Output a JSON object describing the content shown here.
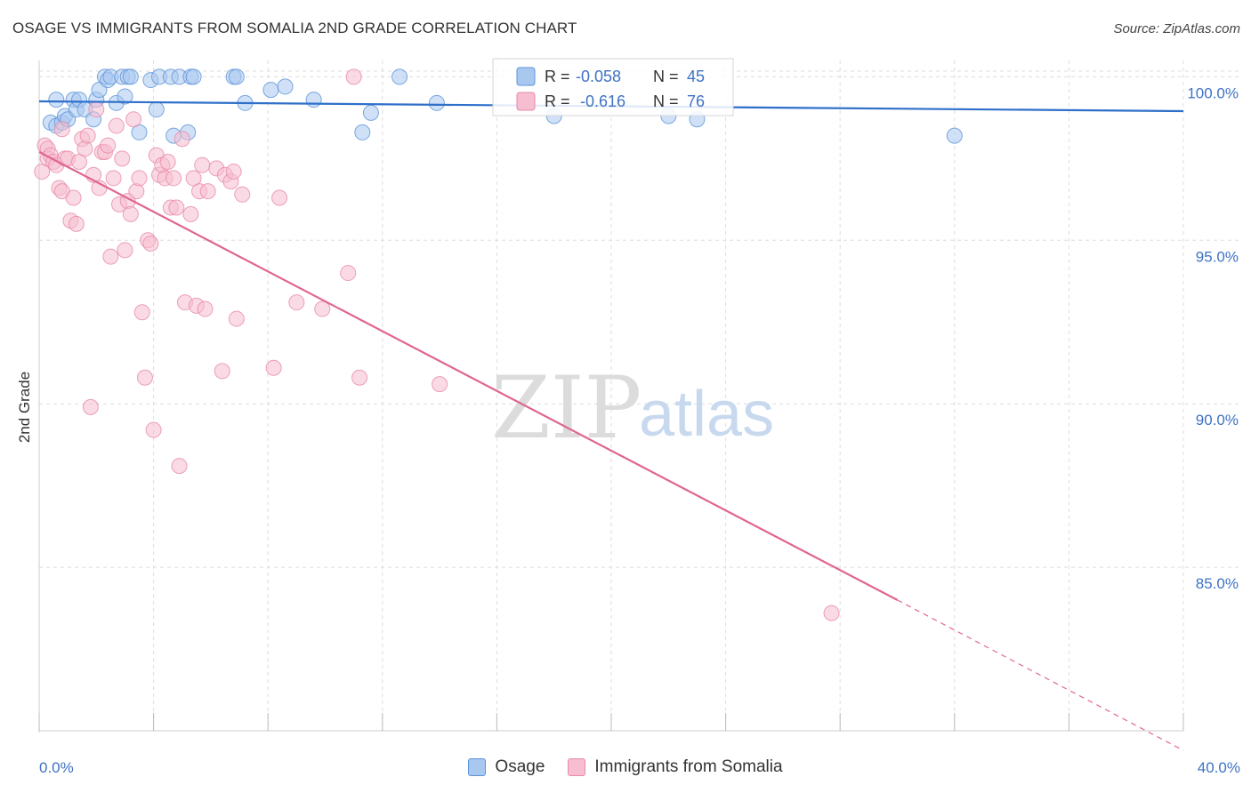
{
  "title": "OSAGE VS IMMIGRANTS FROM SOMALIA 2ND GRADE CORRELATION CHART",
  "source": "Source: ZipAtlas.com",
  "watermark": {
    "zip": "ZIP",
    "atlas": "atlas"
  },
  "colors": {
    "osage_fill": "#a9c8f0",
    "osage_stroke": "#5b93d8",
    "osage_line": "#2e6fc9",
    "somalia_fill": "#f6bed0",
    "somalia_stroke": "#e889a8",
    "somalia_line": "#e06690",
    "tick_text": "#3f72c4",
    "grid": "#dddddd"
  },
  "legend_top": {
    "rows": [
      {
        "r_label": "R =",
        "r_value": "-0.058",
        "n_label": "N =",
        "n_value": "45"
      },
      {
        "r_label": "R =",
        "r_value": "-0.616",
        "n_label": "N =",
        "n_value": "76"
      }
    ]
  },
  "legend_bottom": {
    "osage": "Osage",
    "somalia": "Immigrants from Somalia"
  },
  "chart_data": {
    "type": "scatter",
    "title": "OSAGE VS IMMIGRANTS FROM SOMALIA 2ND GRADE CORRELATION CHART",
    "xlabel": "",
    "ylabel": "2nd Grade",
    "xlim": [
      0.0,
      40.0
    ],
    "ylim": [
      80.0,
      100.5
    ],
    "x_tick_labels": [
      "0.0%",
      "40.0%"
    ],
    "y_ticks": [
      100.0,
      95.0,
      90.0,
      85.0
    ],
    "y_tick_labels": [
      "100.0%",
      "95.0%",
      "90.0%",
      "85.0%"
    ],
    "grid": true,
    "legend_position": "top-center",
    "series": [
      {
        "name": "Osage",
        "r": -0.058,
        "n": 45,
        "trend": {
          "x": [
            0.0,
            40.0
          ],
          "y": [
            99.25,
            98.95
          ]
        },
        "points": [
          [
            0.4,
            98.6
          ],
          [
            0.6,
            98.5
          ],
          [
            0.6,
            99.3
          ],
          [
            0.8,
            98.6
          ],
          [
            0.9,
            98.8
          ],
          [
            1.0,
            98.7
          ],
          [
            1.2,
            99.3
          ],
          [
            1.3,
            99.0
          ],
          [
            1.4,
            99.3
          ],
          [
            1.6,
            99.0
          ],
          [
            1.9,
            98.7
          ],
          [
            2.0,
            99.3
          ],
          [
            2.1,
            99.6
          ],
          [
            2.3,
            100.0
          ],
          [
            2.4,
            99.9
          ],
          [
            2.5,
            100.0
          ],
          [
            2.7,
            99.2
          ],
          [
            2.9,
            100.0
          ],
          [
            3.0,
            99.4
          ],
          [
            3.1,
            100.0
          ],
          [
            3.2,
            100.0
          ],
          [
            3.5,
            98.3
          ],
          [
            3.9,
            99.9
          ],
          [
            4.1,
            99.0
          ],
          [
            4.2,
            100.0
          ],
          [
            4.6,
            100.0
          ],
          [
            4.7,
            98.2
          ],
          [
            4.9,
            100.0
          ],
          [
            5.2,
            98.3
          ],
          [
            5.3,
            100.0
          ],
          [
            5.4,
            100.0
          ],
          [
            6.8,
            100.0
          ],
          [
            6.9,
            100.0
          ],
          [
            7.2,
            99.2
          ],
          [
            8.1,
            99.6
          ],
          [
            8.6,
            99.7
          ],
          [
            9.6,
            99.3
          ],
          [
            11.3,
            98.3
          ],
          [
            11.6,
            98.9
          ],
          [
            12.6,
            100.0
          ],
          [
            13.9,
            99.2
          ],
          [
            18.0,
            98.8
          ],
          [
            22.0,
            98.8
          ],
          [
            23.0,
            98.7
          ],
          [
            32.0,
            98.2
          ]
        ]
      },
      {
        "name": "Immigrants from Somalia",
        "r": -0.616,
        "n": 76,
        "trend": {
          "x": [
            0.0,
            30.0
          ],
          "y": [
            97.7,
            84.0
          ]
        },
        "trend_extension": {
          "x": [
            30.0,
            40.0
          ],
          "y": [
            84.0,
            79.4
          ]
        },
        "points": [
          [
            0.1,
            97.1
          ],
          [
            0.2,
            97.9
          ],
          [
            0.3,
            97.8
          ],
          [
            0.3,
            97.5
          ],
          [
            0.4,
            97.6
          ],
          [
            0.5,
            97.4
          ],
          [
            0.6,
            97.3
          ],
          [
            0.7,
            96.6
          ],
          [
            0.8,
            96.5
          ],
          [
            0.8,
            98.4
          ],
          [
            0.9,
            97.5
          ],
          [
            1.0,
            97.5
          ],
          [
            1.1,
            95.6
          ],
          [
            1.2,
            96.3
          ],
          [
            1.3,
            95.5
          ],
          [
            1.4,
            97.4
          ],
          [
            1.5,
            98.1
          ],
          [
            1.6,
            97.8
          ],
          [
            1.7,
            98.2
          ],
          [
            1.8,
            89.9
          ],
          [
            1.9,
            97.0
          ],
          [
            2.0,
            99.0
          ],
          [
            2.1,
            96.6
          ],
          [
            2.2,
            97.7
          ],
          [
            2.3,
            97.7
          ],
          [
            2.4,
            97.9
          ],
          [
            2.5,
            94.5
          ],
          [
            2.6,
            96.9
          ],
          [
            2.7,
            98.5
          ],
          [
            2.8,
            96.1
          ],
          [
            2.9,
            97.5
          ],
          [
            3.0,
            94.7
          ],
          [
            3.1,
            96.2
          ],
          [
            3.2,
            95.8
          ],
          [
            3.3,
            98.7
          ],
          [
            3.4,
            96.5
          ],
          [
            3.5,
            96.9
          ],
          [
            3.6,
            92.8
          ],
          [
            3.7,
            90.8
          ],
          [
            3.8,
            95.0
          ],
          [
            3.9,
            94.9
          ],
          [
            4.0,
            89.2
          ],
          [
            4.1,
            97.6
          ],
          [
            4.2,
            97.0
          ],
          [
            4.3,
            97.3
          ],
          [
            4.4,
            96.9
          ],
          [
            4.5,
            97.4
          ],
          [
            4.6,
            96.0
          ],
          [
            4.7,
            96.9
          ],
          [
            4.8,
            96.0
          ],
          [
            4.9,
            88.1
          ],
          [
            5.0,
            98.1
          ],
          [
            5.1,
            93.1
          ],
          [
            5.3,
            95.8
          ],
          [
            5.4,
            96.9
          ],
          [
            5.5,
            93.0
          ],
          [
            5.6,
            96.5
          ],
          [
            5.7,
            97.3
          ],
          [
            5.8,
            92.9
          ],
          [
            5.9,
            96.5
          ],
          [
            6.2,
            97.2
          ],
          [
            6.4,
            91.0
          ],
          [
            6.5,
            97.0
          ],
          [
            6.7,
            96.8
          ],
          [
            6.8,
            97.1
          ],
          [
            6.9,
            92.6
          ],
          [
            7.1,
            96.4
          ],
          [
            8.2,
            91.1
          ],
          [
            8.4,
            96.3
          ],
          [
            9.0,
            93.1
          ],
          [
            9.9,
            92.9
          ],
          [
            10.8,
            94.0
          ],
          [
            11.0,
            100.0
          ],
          [
            11.2,
            90.8
          ],
          [
            14.0,
            90.6
          ],
          [
            27.7,
            83.6
          ]
        ]
      }
    ]
  }
}
